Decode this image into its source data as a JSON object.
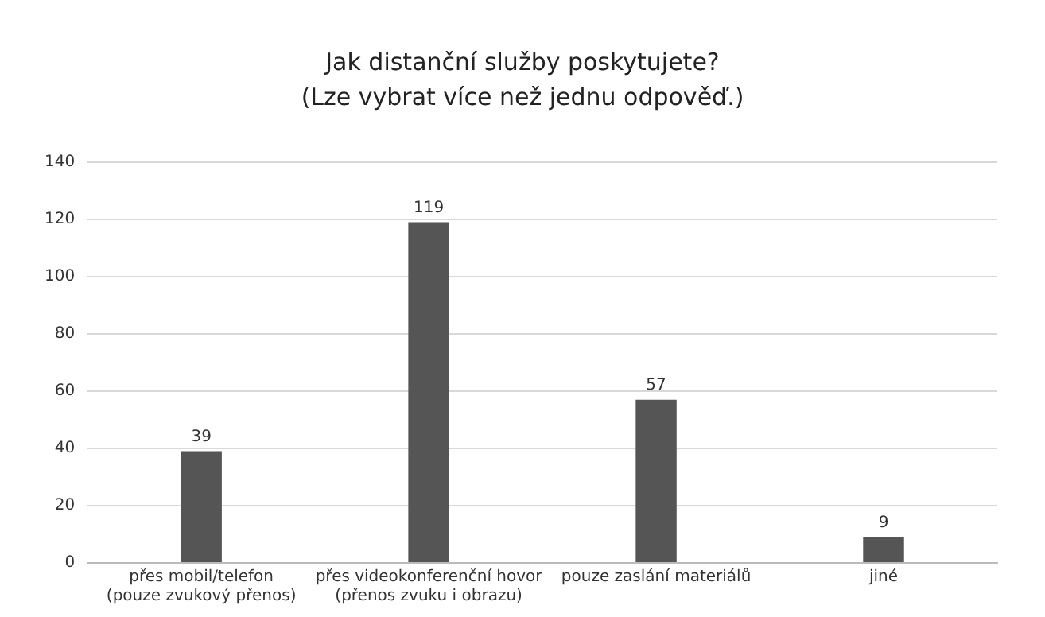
{
  "chart_data": {
    "type": "bar",
    "title": "Jak distanční služby poskytujete?\n(Lze vybrat více než jednu odpověď.)",
    "categories": [
      "přes mobil/telefon\n(pouze zvukový přenos)",
      "přes videokonferenční hovor\n(přenos zvuku i obrazu)",
      "pouze zaslání materiálů",
      "jiné"
    ],
    "values": [
      39,
      119,
      57,
      9
    ],
    "color": "#555555",
    "ylim": [
      0,
      140
    ],
    "yticks": [
      0,
      20,
      40,
      60,
      80,
      100,
      120,
      140
    ],
    "grid": "y",
    "data_labels": true,
    "legend": false
  }
}
